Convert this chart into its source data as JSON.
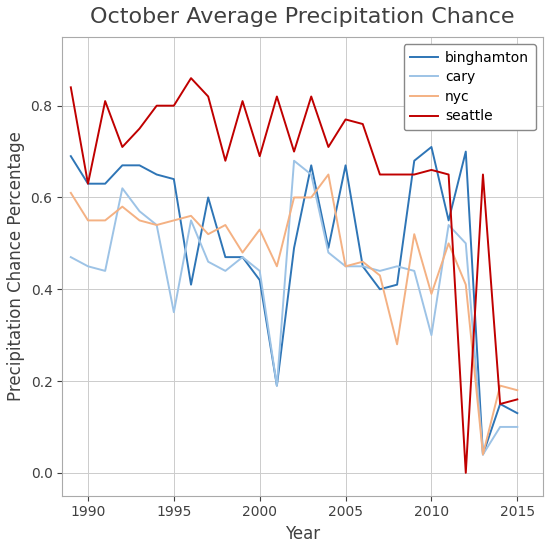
{
  "title": "October Average Precipitation Chance",
  "xlabel": "Year",
  "ylabel": "Precipitation Chance Percentage",
  "title_fontsize": 16,
  "label_fontsize": 12,
  "tick_fontsize": 10,
  "background_color": "#ffffff",
  "grid_color": "#cccccc",
  "series": {
    "binghamton": {
      "color": "#2E75B6",
      "linewidth": 1.4,
      "years": [
        1989,
        1990,
        1991,
        1992,
        1993,
        1994,
        1995,
        1996,
        1997,
        1998,
        1999,
        2000,
        2001,
        2002,
        2003,
        2004,
        2005,
        2006,
        2007,
        2008,
        2009,
        2010,
        2011,
        2012,
        2013,
        2014,
        2015
      ],
      "values": [
        0.69,
        0.63,
        0.63,
        0.67,
        0.67,
        0.65,
        0.64,
        0.41,
        0.6,
        0.47,
        0.47,
        0.42,
        0.19,
        0.49,
        0.67,
        0.49,
        0.67,
        0.45,
        0.4,
        0.41,
        0.68,
        0.71,
        0.55,
        0.7,
        0.04,
        0.15,
        0.13
      ]
    },
    "cary": {
      "color": "#9DC3E6",
      "linewidth": 1.4,
      "years": [
        1989,
        1990,
        1991,
        1992,
        1993,
        1994,
        1995,
        1996,
        1997,
        1998,
        1999,
        2000,
        2001,
        2002,
        2003,
        2004,
        2005,
        2006,
        2007,
        2008,
        2009,
        2010,
        2011,
        2012,
        2013,
        2014,
        2015
      ],
      "values": [
        0.47,
        0.45,
        0.44,
        0.62,
        0.57,
        0.54,
        0.35,
        0.55,
        0.46,
        0.44,
        0.47,
        0.44,
        0.19,
        0.68,
        0.65,
        0.48,
        0.45,
        0.45,
        0.44,
        0.45,
        0.44,
        0.3,
        0.54,
        0.5,
        0.04,
        0.1,
        0.1
      ]
    },
    "nyc": {
      "color": "#F4B183",
      "linewidth": 1.4,
      "years": [
        1989,
        1990,
        1991,
        1992,
        1993,
        1994,
        1995,
        1996,
        1997,
        1998,
        1999,
        2000,
        2001,
        2002,
        2003,
        2004,
        2005,
        2006,
        2007,
        2008,
        2009,
        2010,
        2011,
        2012,
        2013,
        2014,
        2015
      ],
      "values": [
        0.61,
        0.55,
        0.55,
        0.58,
        0.55,
        0.54,
        0.55,
        0.56,
        0.52,
        0.54,
        0.48,
        0.53,
        0.45,
        0.6,
        0.6,
        0.65,
        0.45,
        0.46,
        0.43,
        0.28,
        0.52,
        0.39,
        0.5,
        0.41,
        0.04,
        0.19,
        0.18
      ]
    },
    "seattle": {
      "color": "#C00000",
      "linewidth": 1.4,
      "years": [
        1989,
        1990,
        1991,
        1992,
        1993,
        1994,
        1995,
        1996,
        1997,
        1998,
        1999,
        2000,
        2001,
        2002,
        2003,
        2004,
        2005,
        2006,
        2007,
        2008,
        2009,
        2010,
        2011,
        2012,
        2013,
        2014,
        2015
      ],
      "values": [
        0.84,
        0.63,
        0.81,
        0.71,
        0.75,
        0.8,
        0.8,
        0.86,
        0.82,
        0.68,
        0.81,
        0.69,
        0.82,
        0.7,
        0.82,
        0.71,
        0.77,
        0.76,
        0.65,
        0.65,
        0.65,
        0.66,
        0.65,
        0.0,
        0.65,
        0.15,
        0.16
      ]
    }
  },
  "xlim": [
    1988.5,
    2016.5
  ],
  "ylim": [
    -0.05,
    0.95
  ],
  "xticks": [
    1990,
    1995,
    2000,
    2005,
    2010,
    2015
  ],
  "yticks": [
    0.0,
    0.2,
    0.4,
    0.6,
    0.8
  ]
}
